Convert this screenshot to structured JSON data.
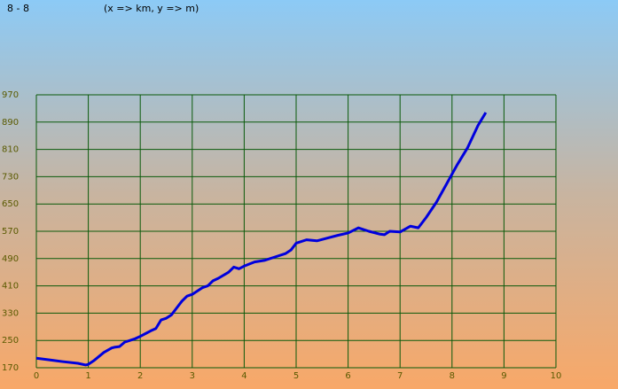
{
  "chart_data": {
    "type": "line",
    "title": "8 - 8",
    "subtitle": "(x => km, y => m)",
    "x": [
      0,
      0.3,
      0.5,
      0.8,
      0.95,
      1.0,
      1.1,
      1.3,
      1.45,
      1.5,
      1.6,
      1.7,
      1.9,
      2.0,
      2.1,
      2.2,
      2.3,
      2.4,
      2.5,
      2.6,
      2.7,
      2.8,
      2.9,
      3.0,
      3.1,
      3.2,
      3.3,
      3.4,
      3.5,
      3.7,
      3.8,
      3.9,
      4.0,
      4.2,
      4.4,
      4.6,
      4.8,
      4.9,
      5.0,
      5.2,
      5.4,
      5.6,
      5.8,
      6.0,
      6.2,
      6.4,
      6.6,
      6.7,
      6.8,
      7.0,
      7.2,
      7.35,
      7.5,
      7.7,
      7.9,
      8.1,
      8.3,
      8.5,
      8.65
    ],
    "series": [
      {
        "color": "#0000dd",
        "values": [
          198,
          192,
          188,
          183,
          178,
          180,
          190,
          215,
          228,
          230,
          232,
          245,
          255,
          262,
          270,
          278,
          285,
          310,
          315,
          325,
          345,
          365,
          380,
          385,
          395,
          405,
          410,
          425,
          432,
          450,
          465,
          460,
          468,
          480,
          485,
          495,
          505,
          515,
          535,
          545,
          542,
          550,
          558,
          565,
          580,
          570,
          562,
          560,
          570,
          568,
          585,
          580,
          610,
          655,
          710,
          765,
          815,
          880,
          918
        ]
      }
    ],
    "xlim": [
      0,
      10
    ],
    "xticks": [
      0,
      1,
      2,
      3,
      4,
      5,
      6,
      7,
      8,
      9,
      10
    ],
    "ylim": [
      170,
      970
    ],
    "yticks": [
      170,
      250,
      330,
      410,
      490,
      570,
      650,
      730,
      810,
      890,
      970
    ],
    "grid": true
  }
}
